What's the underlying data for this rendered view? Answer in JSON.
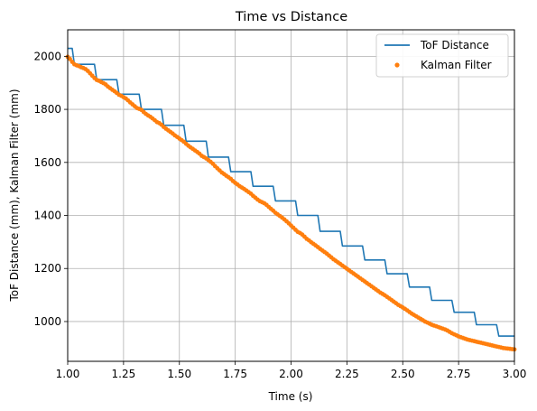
{
  "chart_data": {
    "type": "line",
    "title": "Time vs Distance",
    "xlabel": "Time (s)",
    "ylabel": "ToF Distance (mm), Kalman Filter (mm)",
    "xlim": [
      1.0,
      3.0
    ],
    "ylim": [
      850,
      2100
    ],
    "xticks": [
      1.0,
      1.25,
      1.5,
      1.75,
      2.0,
      2.25,
      2.5,
      2.75,
      3.0
    ],
    "xtick_labels": [
      "1.00",
      "1.25",
      "1.50",
      "1.75",
      "2.00",
      "2.25",
      "2.50",
      "2.75",
      "3.00"
    ],
    "yticks": [
      1000,
      1200,
      1400,
      1600,
      1800,
      2000
    ],
    "ytick_labels": [
      "1000",
      "1200",
      "1400",
      "1600",
      "1800",
      "2000"
    ],
    "grid": true,
    "legend_position": "top-right",
    "colors": {
      "tof": "#1f77b4",
      "kalman": "#ff7f0e"
    },
    "series": [
      {
        "name": "ToF Distance",
        "style": "line",
        "x": [
          1.0,
          1.02,
          1.03,
          1.12,
          1.13,
          1.22,
          1.23,
          1.32,
          1.33,
          1.42,
          1.43,
          1.52,
          1.53,
          1.62,
          1.63,
          1.72,
          1.73,
          1.82,
          1.83,
          1.92,
          1.93,
          2.02,
          2.03,
          2.12,
          2.13,
          2.22,
          2.23,
          2.32,
          2.33,
          2.42,
          2.43,
          2.52,
          2.53,
          2.62,
          2.63,
          2.72,
          2.73,
          2.82,
          2.83,
          2.92,
          2.93,
          3.0
        ],
        "y": [
          2030,
          2030,
          1970,
          1970,
          1912,
          1912,
          1857,
          1857,
          1800,
          1800,
          1740,
          1740,
          1680,
          1680,
          1620,
          1620,
          1565,
          1565,
          1510,
          1510,
          1455,
          1455,
          1400,
          1400,
          1340,
          1340,
          1285,
          1285,
          1232,
          1232,
          1180,
          1180,
          1130,
          1130,
          1080,
          1080,
          1035,
          1035,
          988,
          988,
          945,
          945
        ]
      },
      {
        "name": "Kalman Filter",
        "style": "markers",
        "x": [
          1.0,
          1.01,
          1.02,
          1.03,
          1.04,
          1.05,
          1.06,
          1.07,
          1.08,
          1.09,
          1.1,
          1.11,
          1.12,
          1.13,
          1.14,
          1.15,
          1.16,
          1.17,
          1.18,
          1.19,
          1.2,
          1.21,
          1.22,
          1.23,
          1.24,
          1.25,
          1.26,
          1.27,
          1.28,
          1.29,
          1.3,
          1.31,
          1.32,
          1.33,
          1.34,
          1.35,
          1.36,
          1.37,
          1.38,
          1.39,
          1.4,
          1.41,
          1.42,
          1.43,
          1.44,
          1.45,
          1.46,
          1.47,
          1.48,
          1.49,
          1.5,
          1.51,
          1.52,
          1.53,
          1.54,
          1.55,
          1.56,
          1.57,
          1.58,
          1.59,
          1.6,
          1.61,
          1.62,
          1.63,
          1.64,
          1.65,
          1.66,
          1.67,
          1.68,
          1.69,
          1.7,
          1.71,
          1.72,
          1.73,
          1.74,
          1.75,
          1.76,
          1.77,
          1.78,
          1.79,
          1.8,
          1.81,
          1.82,
          1.83,
          1.84,
          1.85,
          1.86,
          1.87,
          1.88,
          1.89,
          1.9,
          1.91,
          1.92,
          1.93,
          1.94,
          1.95,
          1.96,
          1.97,
          1.98,
          1.99,
          2.0,
          2.01,
          2.02,
          2.03,
          2.04,
          2.05,
          2.06,
          2.07,
          2.08,
          2.09,
          2.1,
          2.11,
          2.12,
          2.13,
          2.14,
          2.15,
          2.16,
          2.17,
          2.18,
          2.19,
          2.2,
          2.21,
          2.22,
          2.23,
          2.24,
          2.25,
          2.26,
          2.27,
          2.28,
          2.29,
          2.3,
          2.31,
          2.32,
          2.33,
          2.34,
          2.35,
          2.36,
          2.37,
          2.38,
          2.39,
          2.4,
          2.41,
          2.42,
          2.43,
          2.44,
          2.45,
          2.46,
          2.47,
          2.48,
          2.49,
          2.5,
          2.51,
          2.52,
          2.53,
          2.54,
          2.55,
          2.56,
          2.57,
          2.58,
          2.59,
          2.6,
          2.61,
          2.62,
          2.63,
          2.64,
          2.65,
          2.66,
          2.67,
          2.68,
          2.69,
          2.7,
          2.71,
          2.72,
          2.73,
          2.74,
          2.75,
          2.76,
          2.77,
          2.78,
          2.79,
          2.8,
          2.81,
          2.82,
          2.83,
          2.84,
          2.85,
          2.86,
          2.87,
          2.88,
          2.89,
          2.9,
          2.91,
          2.92,
          2.93,
          2.94,
          2.95,
          2.96,
          2.97,
          2.98,
          2.99,
          3.0
        ],
        "y": [
          1998,
          1990,
          1979,
          1970,
          1966,
          1963,
          1959,
          1956,
          1952,
          1945,
          1936,
          1927,
          1918,
          1911,
          1908,
          1903,
          1899,
          1894,
          1886,
          1880,
          1874,
          1868,
          1862,
          1855,
          1851,
          1846,
          1841,
          1834,
          1826,
          1819,
          1812,
          1805,
          1802,
          1798,
          1790,
          1783,
          1777,
          1772,
          1766,
          1759,
          1752,
          1748,
          1742,
          1734,
          1727,
          1721,
          1715,
          1709,
          1702,
          1696,
          1690,
          1684,
          1678,
          1670,
          1663,
          1657,
          1651,
          1645,
          1639,
          1633,
          1625,
          1620,
          1615,
          1609,
          1602,
          1595,
          1586,
          1578,
          1570,
          1562,
          1556,
          1550,
          1544,
          1538,
          1530,
          1523,
          1517,
          1510,
          1505,
          1500,
          1494,
          1488,
          1482,
          1474,
          1467,
          1460,
          1454,
          1450,
          1446,
          1440,
          1432,
          1425,
          1418,
          1410,
          1404,
          1398,
          1392,
          1385,
          1378,
          1370,
          1362,
          1354,
          1346,
          1338,
          1334,
          1328,
          1320,
          1312,
          1306,
          1299,
          1293,
          1287,
          1281,
          1274,
          1268,
          1262,
          1256,
          1249,
          1242,
          1235,
          1229,
          1223,
          1217,
          1211,
          1205,
          1199,
          1193,
          1187,
          1181,
          1175,
          1169,
          1163,
          1157,
          1151,
          1145,
          1139,
          1133,
          1127,
          1121,
          1115,
          1109,
          1104,
          1099,
          1093,
          1087,
          1081,
          1075,
          1069,
          1063,
          1058,
          1053,
          1048,
          1042,
          1036,
          1030,
          1025,
          1020,
          1015,
          1010,
          1005,
          1000,
          996,
          992,
          988,
          985,
          982,
          979,
          976,
          973,
          970,
          966,
          961,
          956,
          952,
          948,
          944,
          941,
          938,
          935,
          932,
          930,
          928,
          926,
          924,
          922,
          920,
          918,
          916,
          914,
          912,
          910,
          908,
          906,
          904,
          902,
          900,
          899,
          898,
          897,
          896,
          895
        ]
      }
    ]
  }
}
